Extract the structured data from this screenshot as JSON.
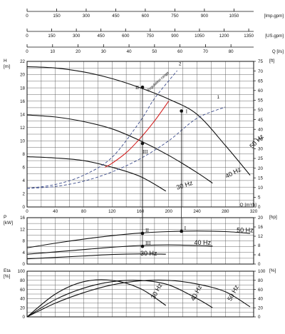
{
  "chart_data": [
    {
      "type": "line",
      "panel": "head",
      "ylabel": "H",
      "yunit": "[m]",
      "y2unit": "[ft]",
      "xlabel": "Q [m³/h]",
      "xlim": [
        0,
        320
      ],
      "ylim": [
        0,
        22
      ],
      "y2lim": [
        0,
        75
      ],
      "xticks": [
        0,
        40,
        80,
        120,
        160,
        200,
        240,
        280,
        320
      ],
      "yticks": [
        0,
        2,
        4,
        6,
        8,
        10,
        12,
        14,
        16,
        18,
        20,
        22
      ],
      "y2ticks": [
        0,
        5,
        10,
        15,
        20,
        25,
        30,
        35,
        40,
        45,
        50,
        55,
        60,
        65,
        70,
        75
      ],
      "grid": true,
      "series": [
        {
          "name": "50 Hz",
          "x": [
            0,
            40,
            80,
            120,
            160,
            200,
            240,
            280,
            315
          ],
          "y": [
            21.2,
            21.0,
            20.4,
            19.4,
            18.0,
            16.3,
            14.0,
            9.3,
            4.8
          ]
        },
        {
          "name": "40 Hz",
          "x": [
            0,
            40,
            80,
            120,
            160,
            200,
            240,
            262
          ],
          "y": [
            13.9,
            13.6,
            12.9,
            11.8,
            10.0,
            7.8,
            5.2,
            3.6
          ]
        },
        {
          "name": "30 Hz",
          "x": [
            0,
            40,
            80,
            120,
            160,
            196
          ],
          "y": [
            7.6,
            7.4,
            7.0,
            6.0,
            4.6,
            2.4
          ]
        },
        {
          "name": "1",
          "style": "dashed-system-curve",
          "x": [
            0,
            40,
            80,
            120,
            160,
            200,
            240,
            280
          ],
          "y": [
            2.8,
            3.1,
            3.9,
            5.3,
            7.3,
            10.0,
            13.4,
            15.1
          ]
        },
        {
          "name": "2",
          "style": "dashed-system-curve",
          "x": [
            0,
            40,
            80,
            120,
            160,
            180,
            212
          ],
          "y": [
            2.8,
            3.4,
            4.8,
            7.5,
            13.0,
            16.4,
            20.6
          ]
        },
        {
          "name": "Regulation range",
          "style": "red-curve",
          "x": [
            110,
            120,
            140,
            160,
            180,
            200
          ],
          "y": [
            6.0,
            6.6,
            8.2,
            10.4,
            13.0,
            16.0
          ]
        }
      ],
      "operating_points": [
        {
          "label": "I",
          "x": 218,
          "y": 14.5
        },
        {
          "label": "II",
          "x": 163,
          "y": 18.1
        },
        {
          "label": "III",
          "x": 163,
          "y": 9.6
        }
      ],
      "curve_labels": [
        "1",
        "2",
        "50 Hz",
        "40 Hz",
        "30 Hz"
      ],
      "annotation": "Regulation range"
    },
    {
      "type": "line",
      "panel": "power",
      "ylabel": "P",
      "yunit": "[kW]",
      "y2unit": "[hp]",
      "xlim": [
        0,
        320
      ],
      "ylim": [
        0,
        16
      ],
      "y2lim": [
        0,
        20
      ],
      "yticks": [
        0,
        4,
        8,
        12,
        16
      ],
      "y2ticks": [
        0,
        4,
        8,
        12,
        16,
        20
      ],
      "grid": true,
      "series": [
        {
          "name": "50 Hz",
          "x": [
            0,
            40,
            80,
            120,
            160,
            200,
            240,
            280,
            315
          ],
          "y": [
            5.6,
            7.2,
            8.6,
            9.8,
            10.7,
            11.2,
            11.4,
            11.2,
            10.6
          ]
        },
        {
          "name": "40 Hz",
          "x": [
            0,
            40,
            80,
            120,
            160,
            200,
            240,
            262
          ],
          "y": [
            3.4,
            4.2,
            5.0,
            5.8,
            6.4,
            6.6,
            6.4,
            6.2
          ]
        },
        {
          "name": "30 Hz",
          "x": [
            0,
            40,
            80,
            120,
            160,
            196
          ],
          "y": [
            1.8,
            2.3,
            2.8,
            3.3,
            3.5,
            3.4
          ]
        }
      ],
      "operating_points": [
        {
          "label": "I",
          "x": 218,
          "y": 11.3
        },
        {
          "label": "II",
          "x": 163,
          "y": 10.6
        },
        {
          "label": "III",
          "x": 163,
          "y": 6.1
        }
      ]
    },
    {
      "type": "line",
      "panel": "efficiency",
      "ylabel": "Eta",
      "yunit": "[%]",
      "y2unit": "[%]",
      "xlim": [
        0,
        320
      ],
      "ylim": [
        0,
        100
      ],
      "yticks": [
        0,
        20,
        40,
        60,
        80,
        100
      ],
      "y2ticks": [
        0,
        20,
        40,
        60,
        80,
        100
      ],
      "grid": true,
      "series": [
        {
          "name": "50 Hz",
          "x": [
            0,
            40,
            80,
            120,
            160,
            200,
            240,
            280,
            315
          ],
          "y": [
            0,
            30,
            53,
            70,
            79,
            80,
            72,
            55,
            22
          ]
        },
        {
          "name": "40 Hz",
          "x": [
            0,
            40,
            80,
            120,
            160,
            200,
            240,
            262
          ],
          "y": [
            0,
            38,
            63,
            77,
            80,
            70,
            40,
            20
          ]
        },
        {
          "name": "30 Hz",
          "x": [
            0,
            40,
            80,
            120,
            160,
            196
          ],
          "y": [
            0,
            50,
            77,
            80,
            62,
            25
          ]
        }
      ]
    }
  ],
  "top_axes": [
    {
      "unit": "[Imp.gpm]",
      "max": 1150,
      "ticks": [
        0,
        150,
        300,
        450,
        600,
        750,
        900,
        1050
      ],
      "labels": [
        "0",
        "150",
        "300",
        "450",
        "600",
        "750",
        "900",
        "1050"
      ]
    },
    {
      "unit": "[US.gpm]",
      "max": 1380,
      "ticks": [
        0,
        150,
        300,
        450,
        600,
        750,
        900,
        1050,
        1200,
        1350
      ],
      "labels": [
        "0",
        "150",
        "300",
        "450",
        "600",
        "750",
        "900",
        "1050",
        "1200",
        "1350"
      ]
    },
    {
      "unit": "Q [l/s]",
      "max": 88.9,
      "ticks": [
        0,
        10,
        20,
        30,
        40,
        50,
        60,
        70,
        80
      ],
      "labels": [
        "0",
        "10",
        "20",
        "30",
        "40",
        "50",
        "60",
        "70",
        "80"
      ]
    }
  ],
  "colors": {
    "line": "#111111",
    "grid": "#555555",
    "dashed": "#3a4a8a",
    "red": "#d42020"
  }
}
